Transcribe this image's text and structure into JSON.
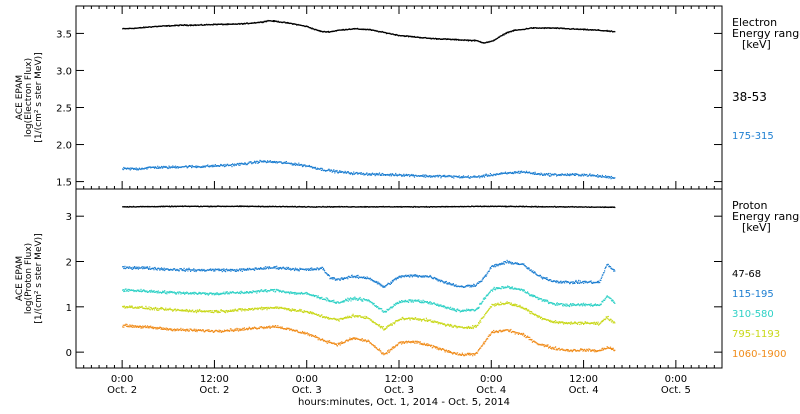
{
  "chart_data": [
    {
      "type": "scatter",
      "panel": "electron",
      "ylabel_lines": [
        "ACE EPAM",
        "log(Electron Flux)",
        "[1/(cm² s ster MeV)]"
      ],
      "ylim": [
        1.4,
        3.87
      ],
      "yticks": [
        1.5,
        2.0,
        2.5,
        3.0,
        3.5
      ],
      "ytick_labels": [
        "1.5",
        "2.0",
        "2.5",
        "3.0",
        "3.5"
      ],
      "legend_title_lines": [
        "Electron",
        "Energy ranges",
        "[keV]"
      ],
      "legend_placement": "right",
      "series": [
        {
          "name": "38-53",
          "color": "#000000",
          "anchors": [
            [
              0,
              3.57
            ],
            [
              2,
              3.58
            ],
            [
              4,
              3.6
            ],
            [
              6,
              3.61
            ],
            [
              8,
              3.62
            ],
            [
              10,
              3.62
            ],
            [
              12,
              3.63
            ],
            [
              14,
              3.63
            ],
            [
              16,
              3.64
            ],
            [
              18,
              3.66
            ],
            [
              19,
              3.68
            ],
            [
              20,
              3.67
            ],
            [
              22,
              3.64
            ],
            [
              24,
              3.6
            ],
            [
              25,
              3.56
            ],
            [
              26,
              3.53
            ],
            [
              27,
              3.53
            ],
            [
              28,
              3.55
            ],
            [
              30,
              3.57
            ],
            [
              32,
              3.56
            ],
            [
              34,
              3.52
            ],
            [
              36,
              3.48
            ],
            [
              38,
              3.46
            ],
            [
              40,
              3.44
            ],
            [
              42,
              3.43
            ],
            [
              44,
              3.42
            ],
            [
              46,
              3.41
            ],
            [
              47,
              3.38
            ],
            [
              48,
              3.4
            ],
            [
              49,
              3.46
            ],
            [
              50,
              3.52
            ],
            [
              51,
              3.55
            ],
            [
              52,
              3.56
            ],
            [
              53,
              3.58
            ],
            [
              54,
              3.58
            ],
            [
              56,
              3.58
            ],
            [
              58,
              3.57
            ],
            [
              60,
              3.56
            ],
            [
              62,
              3.55
            ],
            [
              64,
              3.53
            ]
          ]
        },
        {
          "name": "175-315",
          "color": "#1e7fd1",
          "anchors": [
            [
              0,
              1.68
            ],
            [
              2,
              1.68
            ],
            [
              4,
              1.7
            ],
            [
              6,
              1.7
            ],
            [
              8,
              1.71
            ],
            [
              10,
              1.71
            ],
            [
              12,
              1.72
            ],
            [
              14,
              1.73
            ],
            [
              16,
              1.75
            ],
            [
              18,
              1.78
            ],
            [
              20,
              1.77
            ],
            [
              22,
              1.75
            ],
            [
              24,
              1.72
            ],
            [
              26,
              1.67
            ],
            [
              28,
              1.64
            ],
            [
              30,
              1.62
            ],
            [
              32,
              1.61
            ],
            [
              34,
              1.6
            ],
            [
              36,
              1.6
            ],
            [
              38,
              1.59
            ],
            [
              40,
              1.58
            ],
            [
              42,
              1.58
            ],
            [
              44,
              1.57
            ],
            [
              46,
              1.57
            ],
            [
              48,
              1.6
            ],
            [
              50,
              1.62
            ],
            [
              52,
              1.64
            ],
            [
              54,
              1.61
            ],
            [
              56,
              1.6
            ],
            [
              58,
              1.6
            ],
            [
              60,
              1.6
            ],
            [
              62,
              1.58
            ],
            [
              64,
              1.56
            ]
          ]
        }
      ]
    },
    {
      "type": "scatter",
      "panel": "proton",
      "ylabel_lines": [
        "ACE EPAM",
        "log(Proton Flux)",
        "[1/(cm² s ster MeV)]"
      ],
      "ylim": [
        -0.35,
        3.6
      ],
      "yticks": [
        0,
        1,
        2,
        3
      ],
      "ytick_labels": [
        "0",
        "1",
        "2",
        "3"
      ],
      "legend_title_lines": [
        "Proton",
        "Energy ranges",
        "[keV]"
      ],
      "legend_placement": "right",
      "series": [
        {
          "name": "47-68",
          "color": "#000000",
          "anchors": [
            [
              0,
              3.22
            ],
            [
              8,
              3.23
            ],
            [
              16,
              3.23
            ],
            [
              24,
              3.22
            ],
            [
              32,
              3.22
            ],
            [
              40,
              3.22
            ],
            [
              48,
              3.23
            ],
            [
              56,
              3.22
            ],
            [
              64,
              3.21
            ]
          ]
        },
        {
          "name": "115-195",
          "color": "#1e7fd1",
          "anchors": [
            [
              0,
              1.87
            ],
            [
              2,
              1.88
            ],
            [
              4,
              1.86
            ],
            [
              6,
              1.84
            ],
            [
              8,
              1.83
            ],
            [
              10,
              1.82
            ],
            [
              12,
              1.83
            ],
            [
              14,
              1.82
            ],
            [
              16,
              1.83
            ],
            [
              18,
              1.86
            ],
            [
              20,
              1.88
            ],
            [
              22,
              1.85
            ],
            [
              24,
              1.83
            ],
            [
              26,
              1.86
            ],
            [
              27,
              1.65
            ],
            [
              28,
              1.62
            ],
            [
              30,
              1.68
            ],
            [
              32,
              1.65
            ],
            [
              34,
              1.45
            ],
            [
              36,
              1.68
            ],
            [
              38,
              1.7
            ],
            [
              40,
              1.68
            ],
            [
              42,
              1.55
            ],
            [
              44,
              1.45
            ],
            [
              46,
              1.5
            ],
            [
              47,
              1.65
            ],
            [
              48,
              1.9
            ],
            [
              50,
              2.0
            ],
            [
              52,
              1.95
            ],
            [
              54,
              1.7
            ],
            [
              56,
              1.58
            ],
            [
              58,
              1.55
            ],
            [
              60,
              1.56
            ],
            [
              62,
              1.55
            ],
            [
              63,
              1.95
            ],
            [
              64,
              1.8
            ]
          ]
        },
        {
          "name": "310-580",
          "color": "#2fd1c6",
          "anchors": [
            [
              0,
              1.38
            ],
            [
              2,
              1.37
            ],
            [
              4,
              1.35
            ],
            [
              6,
              1.33
            ],
            [
              8,
              1.32
            ],
            [
              10,
              1.31
            ],
            [
              12,
              1.3
            ],
            [
              14,
              1.32
            ],
            [
              16,
              1.33
            ],
            [
              18,
              1.36
            ],
            [
              20,
              1.38
            ],
            [
              22,
              1.32
            ],
            [
              24,
              1.3
            ],
            [
              26,
              1.2
            ],
            [
              28,
              1.1
            ],
            [
              30,
              1.2
            ],
            [
              32,
              1.15
            ],
            [
              34,
              0.9
            ],
            [
              36,
              1.12
            ],
            [
              38,
              1.15
            ],
            [
              40,
              1.1
            ],
            [
              42,
              1.0
            ],
            [
              44,
              0.92
            ],
            [
              46,
              0.95
            ],
            [
              48,
              1.4
            ],
            [
              50,
              1.45
            ],
            [
              52,
              1.38
            ],
            [
              54,
              1.2
            ],
            [
              56,
              1.08
            ],
            [
              58,
              1.05
            ],
            [
              60,
              1.06
            ],
            [
              62,
              1.05
            ],
            [
              63,
              1.25
            ],
            [
              64,
              1.1
            ]
          ]
        },
        {
          "name": "795-1193",
          "color": "#c9d81a",
          "anchors": [
            [
              0,
              1.02
            ],
            [
              2,
              1.0
            ],
            [
              4,
              0.97
            ],
            [
              6,
              0.95
            ],
            [
              8,
              0.93
            ],
            [
              10,
              0.92
            ],
            [
              12,
              0.91
            ],
            [
              14,
              0.93
            ],
            [
              16,
              0.95
            ],
            [
              18,
              0.98
            ],
            [
              20,
              1.0
            ],
            [
              22,
              0.95
            ],
            [
              24,
              0.9
            ],
            [
              26,
              0.8
            ],
            [
              28,
              0.72
            ],
            [
              30,
              0.82
            ],
            [
              32,
              0.76
            ],
            [
              34,
              0.52
            ],
            [
              36,
              0.74
            ],
            [
              38,
              0.76
            ],
            [
              40,
              0.7
            ],
            [
              42,
              0.62
            ],
            [
              44,
              0.55
            ],
            [
              46,
              0.58
            ],
            [
              48,
              1.05
            ],
            [
              50,
              1.1
            ],
            [
              52,
              1.0
            ],
            [
              54,
              0.8
            ],
            [
              56,
              0.68
            ],
            [
              58,
              0.65
            ],
            [
              60,
              0.66
            ],
            [
              62,
              0.64
            ],
            [
              63,
              0.78
            ],
            [
              64,
              0.66
            ]
          ]
        },
        {
          "name": "1060-1900",
          "color": "#f08c1a",
          "anchors": [
            [
              0,
              0.6
            ],
            [
              2,
              0.58
            ],
            [
              4,
              0.55
            ],
            [
              6,
              0.52
            ],
            [
              8,
              0.5
            ],
            [
              10,
              0.49
            ],
            [
              12,
              0.48
            ],
            [
              14,
              0.5
            ],
            [
              16,
              0.52
            ],
            [
              18,
              0.56
            ],
            [
              20,
              0.58
            ],
            [
              22,
              0.5
            ],
            [
              24,
              0.42
            ],
            [
              26,
              0.28
            ],
            [
              28,
              0.18
            ],
            [
              30,
              0.32
            ],
            [
              32,
              0.25
            ],
            [
              34,
              -0.05
            ],
            [
              36,
              0.22
            ],
            [
              38,
              0.24
            ],
            [
              40,
              0.15
            ],
            [
              42,
              0.05
            ],
            [
              44,
              -0.05
            ],
            [
              46,
              -0.02
            ],
            [
              48,
              0.45
            ],
            [
              50,
              0.5
            ],
            [
              52,
              0.4
            ],
            [
              54,
              0.2
            ],
            [
              56,
              0.1
            ],
            [
              58,
              0.05
            ],
            [
              60,
              0.06
            ],
            [
              62,
              0.04
            ],
            [
              63,
              0.12
            ],
            [
              64,
              0.06
            ]
          ]
        }
      ]
    }
  ],
  "x_axis": {
    "unit": "hours since 2014-10-02 00:00 UT",
    "range": [
      -6,
      78
    ],
    "data_end": 64,
    "tick_values": [
      0,
      12,
      24,
      36,
      48,
      60,
      72
    ],
    "tick_labels_top": [
      "0:00",
      "12:00",
      "0:00",
      "12:00",
      "0:00",
      "12:00",
      "0:00"
    ],
    "tick_labels_bottom": [
      "Oct. 2",
      "Oct. 2",
      "Oct. 3",
      "Oct. 3",
      "Oct. 4",
      "Oct. 4",
      "Oct. 5"
    ],
    "minor_tick_step": 1,
    "xlabel": "hours:minutes, Oct.  1, 2014 - Oct.  5, 2014"
  }
}
